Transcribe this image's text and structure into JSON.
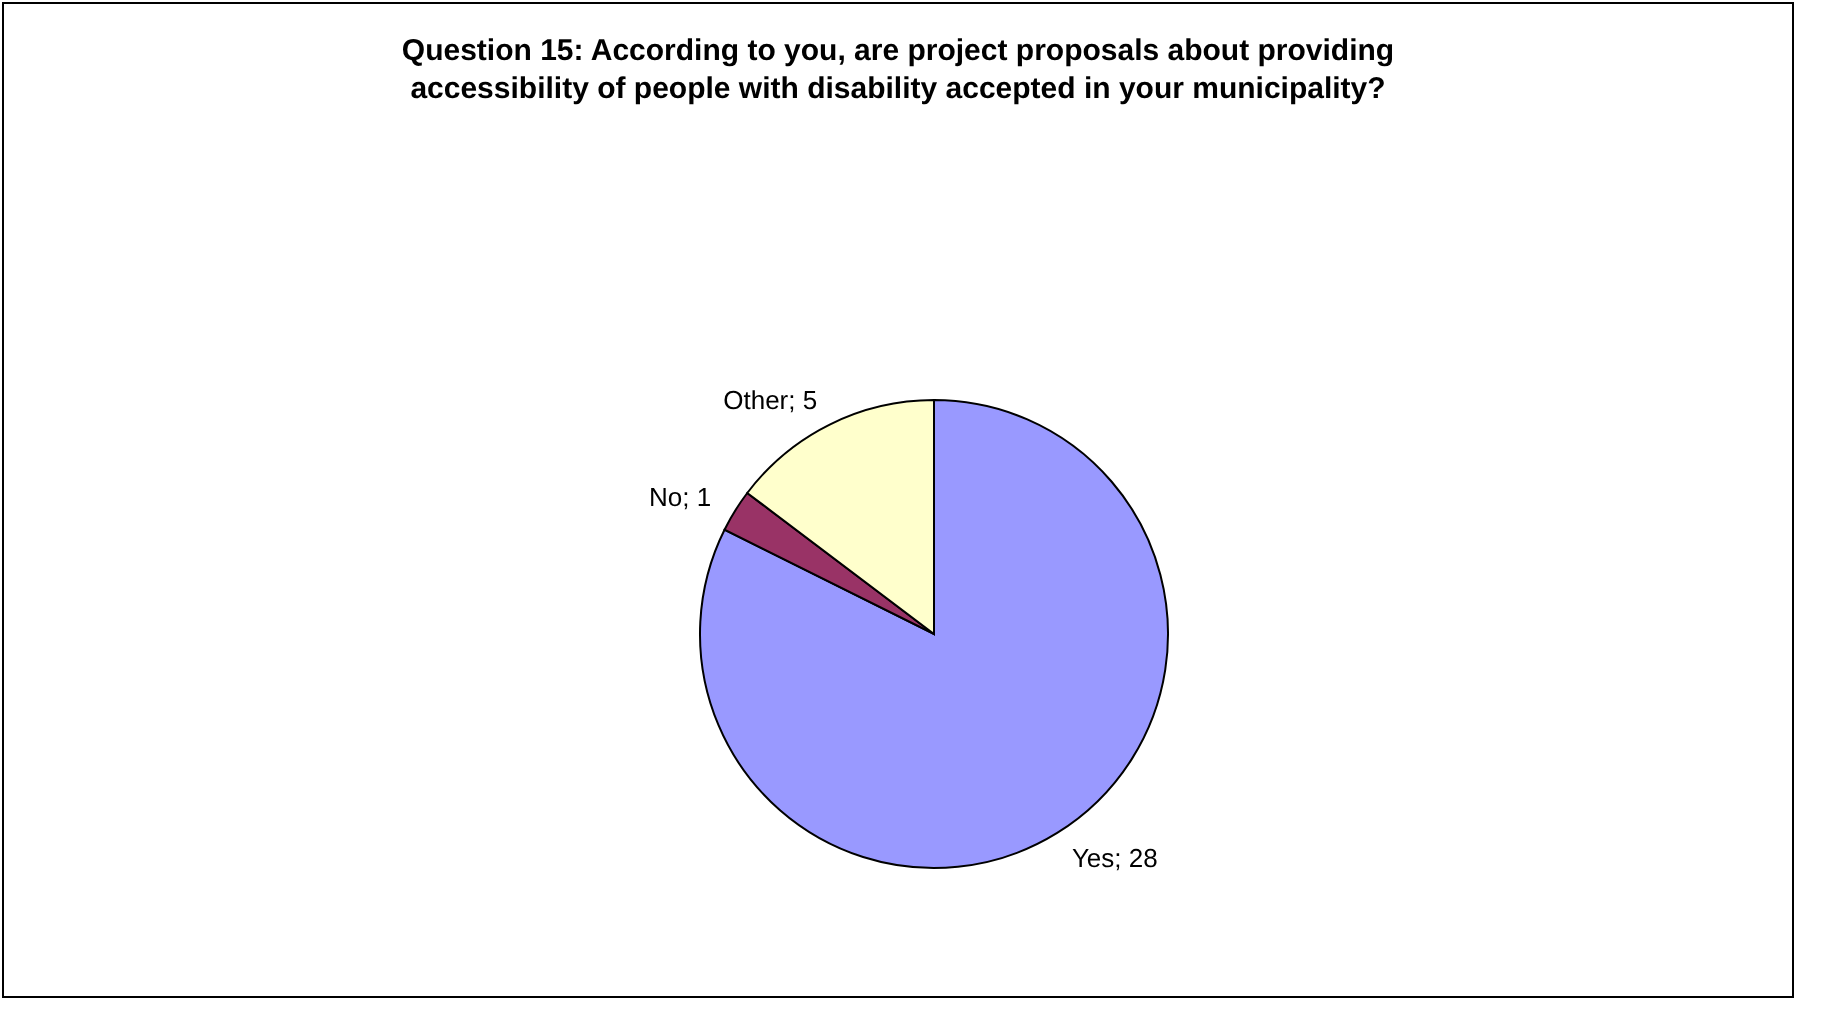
{
  "chart_data": {
    "type": "pie",
    "title": "Question 15: According to you, are project proposals about providing accessibility of people with disability accepted in your municipality?",
    "categories": [
      "Yes",
      "No",
      "Other"
    ],
    "values": [
      28,
      1,
      5
    ],
    "colors": [
      "#9999ff",
      "#993366",
      "#ffffcc"
    ],
    "value_labels": [
      "; 28",
      "; 1",
      "; 5"
    ]
  }
}
